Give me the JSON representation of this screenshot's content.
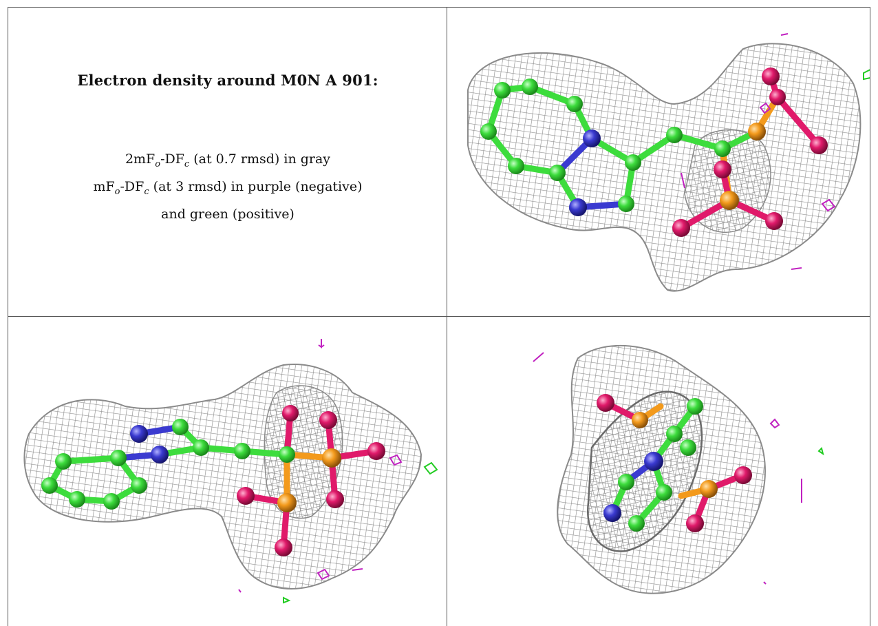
{
  "figure": {
    "title": "Electron density around M0N A 901:",
    "legend": {
      "line1": {
        "pre": "2mF",
        "sub1": "o",
        "mid": "-DF",
        "sub2": "c",
        "post": " (at 0.7 rmsd) in gray"
      },
      "line2": {
        "pre": "mF",
        "sub1": "o",
        "mid": "-DF",
        "sub2": "c",
        "post": " (at 3 rmsd) in purple (negative)"
      },
      "line3": "and green (positive)"
    },
    "colors": {
      "mesh": "#9a9a9a",
      "carbon": "#3ddc3d",
      "nitrogen": "#3a3ad0",
      "oxygen": "#e01a6a",
      "phosphorus": "#f39a1c",
      "negative_density": "#c020c0",
      "positive_density": "#22cc22"
    },
    "panels": [
      "view-1",
      "view-2",
      "view-3"
    ]
  }
}
